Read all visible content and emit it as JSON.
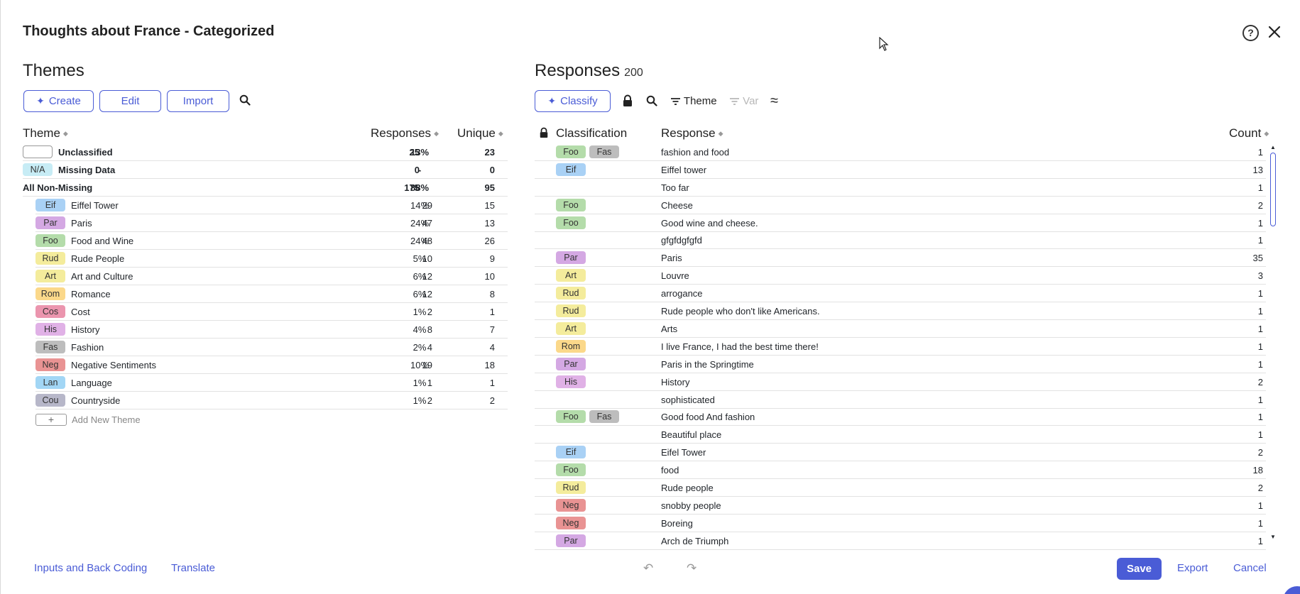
{
  "dialog": {
    "title": "Thoughts about France - Categorized"
  },
  "themes": {
    "heading": "Themes",
    "buttons": {
      "create": "Create",
      "edit": "Edit",
      "import": "Import"
    },
    "columns": {
      "theme": "Theme",
      "responses": "Responses",
      "unique": "Unique"
    },
    "summary_rows": [
      {
        "tag": "",
        "tag_color": "#ffffff",
        "name": "Unclassified",
        "responses": "25",
        "pct": "13%",
        "unique": "23"
      },
      {
        "tag": "N/A",
        "tag_color": "#c7ecf5",
        "name": "Missing Data",
        "responses": "0",
        "pct": "-",
        "unique": "0"
      },
      {
        "name": "All Non-Missing",
        "responses": "175",
        "pct": "88%",
        "unique": "95"
      }
    ],
    "rows": [
      {
        "tag": "Eif",
        "color": "#a9d1f5",
        "name": "Eiffel Tower",
        "responses": "29",
        "pct": "14%",
        "unique": "15"
      },
      {
        "tag": "Par",
        "color": "#d4a8e3",
        "name": "Paris",
        "responses": "47",
        "pct": "24%",
        "unique": "13"
      },
      {
        "tag": "Foo",
        "color": "#b4dcaa",
        "name": "Food and Wine",
        "responses": "48",
        "pct": "24%",
        "unique": "26"
      },
      {
        "tag": "Rud",
        "color": "#f4ec9c",
        "name": "Rude People",
        "responses": "10",
        "pct": "5%",
        "unique": "9"
      },
      {
        "tag": "Art",
        "color": "#f4ec9c",
        "name": "Art and Culture",
        "responses": "12",
        "pct": "6%",
        "unique": "10"
      },
      {
        "tag": "Rom",
        "color": "#fbd88a",
        "name": "Romance",
        "responses": "12",
        "pct": "6%",
        "unique": "8"
      },
      {
        "tag": "Cos",
        "color": "#eb95ae",
        "name": "Cost",
        "responses": "2",
        "pct": "1%",
        "unique": "1"
      },
      {
        "tag": "His",
        "color": "#e0b1e6",
        "name": "History",
        "responses": "8",
        "pct": "4%",
        "unique": "7"
      },
      {
        "tag": "Fas",
        "color": "#bdbdbd",
        "name": "Fashion",
        "responses": "4",
        "pct": "2%",
        "unique": "4"
      },
      {
        "tag": "Neg",
        "color": "#e99393",
        "name": "Negative Sentiments",
        "responses": "19",
        "pct": "10%",
        "unique": "18"
      },
      {
        "tag": "Lan",
        "color": "#a2d6f5",
        "name": "Language",
        "responses": "1",
        "pct": "1%",
        "unique": "1"
      },
      {
        "tag": "Cou",
        "color": "#b7b7c9",
        "name": "Countryside",
        "responses": "2",
        "pct": "1%",
        "unique": "2"
      }
    ],
    "add_new_label": "Add New Theme"
  },
  "responses": {
    "heading": "Responses",
    "total": "200",
    "toolbar": {
      "classify": "Classify",
      "theme_filter": "Theme",
      "var_filter": "Var"
    },
    "columns": {
      "classification": "Classification",
      "response": "Response",
      "count": "Count"
    },
    "rows": [
      {
        "tags": [
          {
            "t": "Foo",
            "c": "#b4dcaa"
          },
          {
            "t": "Fas",
            "c": "#bdbdbd"
          }
        ],
        "text": "fashion and food",
        "count": "1"
      },
      {
        "tags": [
          {
            "t": "Eif",
            "c": "#a9d1f5"
          }
        ],
        "text": "Eiffel tower",
        "count": "13"
      },
      {
        "tags": [],
        "text": "Too far",
        "count": "1"
      },
      {
        "tags": [
          {
            "t": "Foo",
            "c": "#b4dcaa"
          }
        ],
        "text": "Cheese",
        "count": "2"
      },
      {
        "tags": [
          {
            "t": "Foo",
            "c": "#b4dcaa"
          }
        ],
        "text": "Good wine and cheese.",
        "count": "1"
      },
      {
        "tags": [],
        "text": "gfgfdgfgfd",
        "count": "1"
      },
      {
        "tags": [
          {
            "t": "Par",
            "c": "#d4a8e3"
          }
        ],
        "text": "Paris",
        "count": "35"
      },
      {
        "tags": [
          {
            "t": "Art",
            "c": "#f4ec9c"
          }
        ],
        "text": "Louvre",
        "count": "3"
      },
      {
        "tags": [
          {
            "t": "Rud",
            "c": "#f4ec9c"
          }
        ],
        "text": "arrogance",
        "count": "1"
      },
      {
        "tags": [
          {
            "t": "Rud",
            "c": "#f4ec9c"
          }
        ],
        "text": "Rude people who don't like Americans.",
        "count": "1"
      },
      {
        "tags": [
          {
            "t": "Art",
            "c": "#f4ec9c"
          }
        ],
        "text": "Arts",
        "count": "1"
      },
      {
        "tags": [
          {
            "t": "Rom",
            "c": "#fbd88a"
          }
        ],
        "text": "I live France, I had the best time there!",
        "count": "1"
      },
      {
        "tags": [
          {
            "t": "Par",
            "c": "#d4a8e3"
          }
        ],
        "text": "Paris in the Springtime",
        "count": "1"
      },
      {
        "tags": [
          {
            "t": "His",
            "c": "#e0b1e6"
          }
        ],
        "text": "History",
        "count": "2"
      },
      {
        "tags": [],
        "text": "sophisticated",
        "count": "1"
      },
      {
        "tags": [
          {
            "t": "Foo",
            "c": "#b4dcaa"
          },
          {
            "t": "Fas",
            "c": "#bdbdbd"
          }
        ],
        "text": "Good food And fashion",
        "count": "1"
      },
      {
        "tags": [],
        "text": "Beautiful place",
        "count": "1"
      },
      {
        "tags": [
          {
            "t": "Eif",
            "c": "#a9d1f5"
          }
        ],
        "text": "Eifel Tower",
        "count": "2"
      },
      {
        "tags": [
          {
            "t": "Foo",
            "c": "#b4dcaa"
          }
        ],
        "text": "food",
        "count": "18"
      },
      {
        "tags": [
          {
            "t": "Rud",
            "c": "#f4ec9c"
          }
        ],
        "text": "Rude people",
        "count": "2"
      },
      {
        "tags": [
          {
            "t": "Neg",
            "c": "#e99393"
          }
        ],
        "text": "snobby people",
        "count": "1"
      },
      {
        "tags": [
          {
            "t": "Neg",
            "c": "#e99393"
          }
        ],
        "text": "Boreing",
        "count": "1"
      },
      {
        "tags": [
          {
            "t": "Par",
            "c": "#d4a8e3"
          }
        ],
        "text": "Arch de Triumph",
        "count": "1"
      }
    ]
  },
  "footer": {
    "inputs_back_coding": "Inputs and Back Coding",
    "translate": "Translate",
    "save": "Save",
    "export": "Export",
    "cancel": "Cancel"
  },
  "colors": {
    "accent": "#4a5cd6"
  }
}
